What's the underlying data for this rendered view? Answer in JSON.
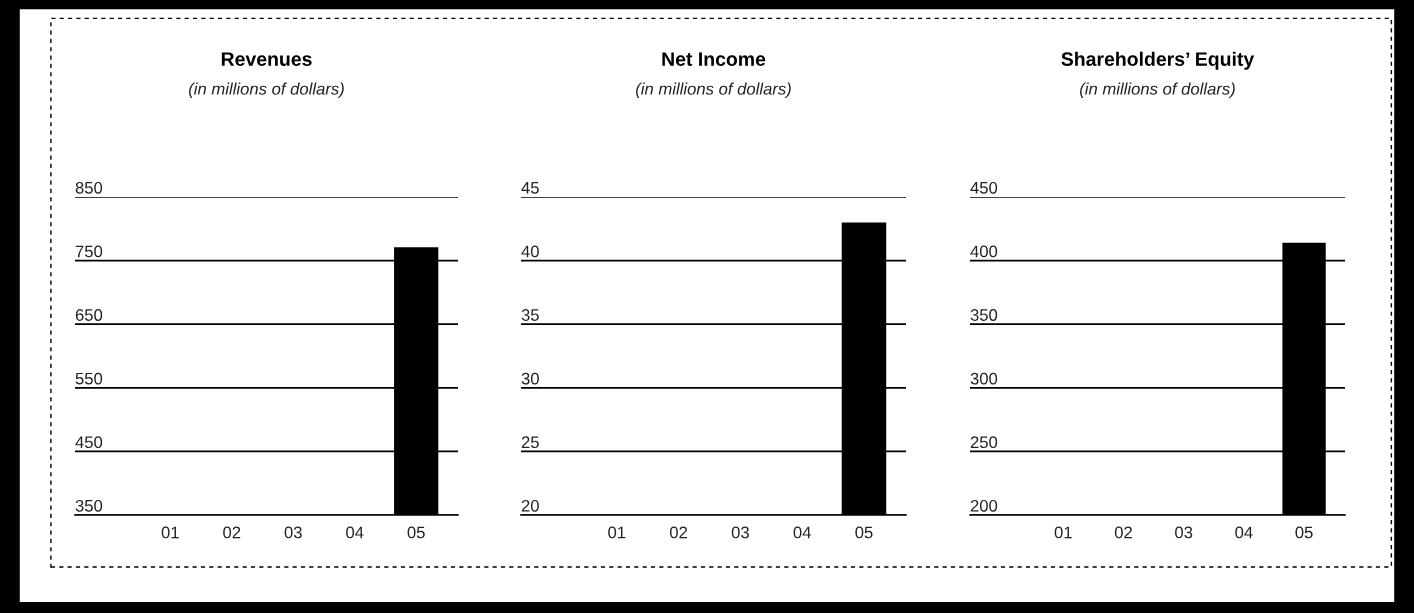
{
  "chart_data": [
    {
      "type": "bar",
      "title": "Revenues",
      "subtitle": "(in millions of dollars)",
      "categories": [
        "01",
        "02",
        "03",
        "04",
        "05"
      ],
      "values": [
        null,
        null,
        null,
        null,
        771
      ],
      "color": "#000000",
      "ylim": [
        350,
        850
      ],
      "yticks": [
        350,
        450,
        550,
        650,
        750,
        850
      ],
      "grid": "y"
    },
    {
      "type": "bar",
      "title": "Net Income",
      "subtitle": "(in millions of dollars)",
      "categories": [
        "01",
        "02",
        "03",
        "04",
        "05"
      ],
      "values": [
        null,
        null,
        null,
        null,
        43
      ],
      "color": "#000000",
      "ylim": [
        20,
        45
      ],
      "yticks": [
        20,
        25,
        30,
        35,
        40,
        45
      ],
      "grid": "y"
    },
    {
      "type": "bar",
      "title": "Shareholders’ Equity",
      "subtitle": "(in millions of dollars)",
      "categories": [
        "01",
        "02",
        "03",
        "04",
        "05"
      ],
      "values": [
        null,
        null,
        null,
        null,
        414
      ],
      "color": "#000000",
      "ylim": [
        200,
        450
      ],
      "yticks": [
        200,
        250,
        300,
        350,
        400,
        450
      ],
      "grid": "y"
    }
  ]
}
